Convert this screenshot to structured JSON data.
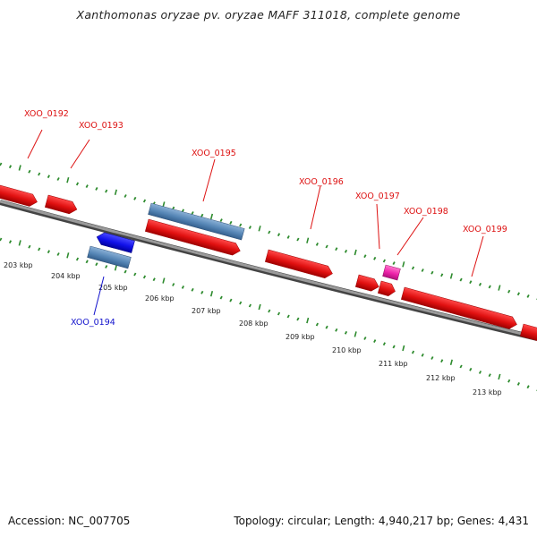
{
  "header": {
    "title": "Xanthomonas oryzae pv. oryzae MAFF 311018, complete genome"
  },
  "footer": {
    "accession": "Accession: NC_007705",
    "summary": "Topology: circular; Length: 4,940,217 bp; Genes: 4,431"
  },
  "colors": {
    "backbone": "#808080",
    "tick": "#2e8b2e",
    "forward_gene": "#ee1111",
    "reverse_gene": "#1515ee",
    "rna_gene": "#5588bb",
    "other_gene": "#ee33aa",
    "forward_label": "#dd1111",
    "reverse_label": "#1111cc"
  },
  "scale": {
    "unit": "kbp",
    "labels": [
      "203 kbp",
      "204 kbp",
      "205 kbp",
      "206 kbp",
      "207 kbp",
      "208 kbp",
      "209 kbp",
      "210 kbp",
      "211 kbp",
      "212 kbp",
      "213 kbp"
    ]
  },
  "genes": [
    {
      "name": "XOO_0192",
      "strand": "+",
      "type": "cds"
    },
    {
      "name": "XOO_0193",
      "strand": "+",
      "type": "cds"
    },
    {
      "name": "XOO_0194",
      "strand": "-",
      "type": "cds"
    },
    {
      "name": "XOO_0195",
      "strand": "+",
      "type": "cds"
    },
    {
      "name": "XOO_0196",
      "strand": "+",
      "type": "cds"
    },
    {
      "name": "XOO_0197",
      "strand": "+",
      "type": "cds"
    },
    {
      "name": "XOO_0198",
      "strand": "+",
      "type": "cds"
    },
    {
      "name": "XOO_0199",
      "strand": "+",
      "type": "cds"
    }
  ]
}
